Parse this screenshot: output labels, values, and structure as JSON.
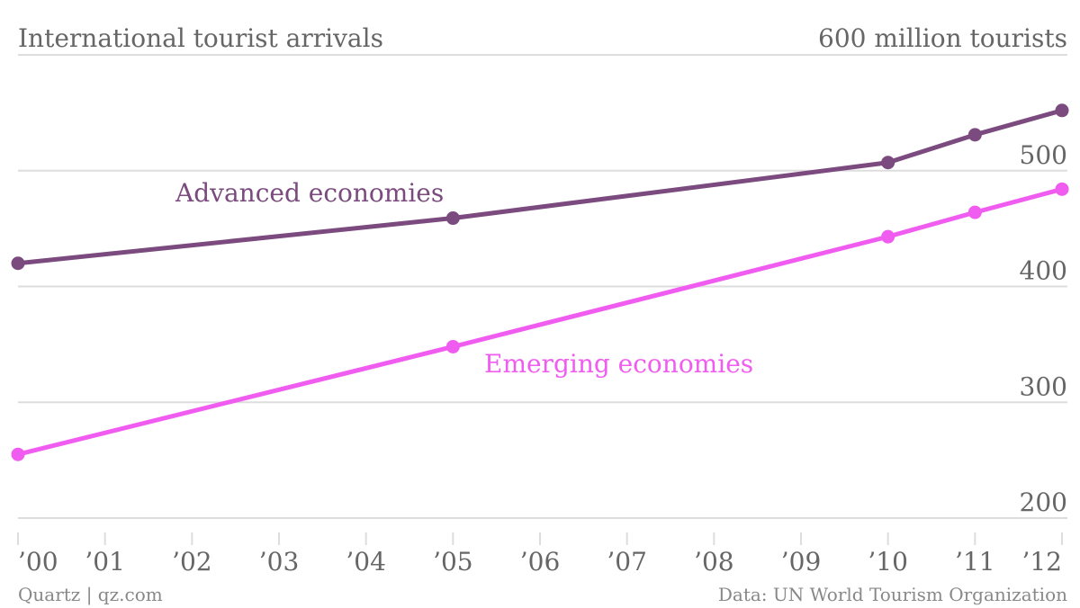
{
  "chart_data": {
    "type": "line",
    "title": "International tourist arrivals",
    "ylabel_top": "600 million tourists",
    "source": "Data: UN World Tourism Organization",
    "credit": "Quartz | qz.com",
    "x_ticks": [
      "’00",
      "’01",
      "’02",
      "’03",
      "’04",
      "’05",
      "’06",
      "’07",
      "’08",
      "’09",
      "’10",
      "’11",
      "’12"
    ],
    "y_ticks": [
      200,
      300,
      400,
      500
    ],
    "ylim": [
      200,
      600
    ],
    "xlim": [
      2000,
      2012
    ],
    "grid": true,
    "series": [
      {
        "name": "Advanced economies",
        "color": "#7b4a7e",
        "x": [
          2000,
          2005,
          2010,
          2011,
          2012
        ],
        "values": [
          420,
          459,
          507,
          531,
          552
        ]
      },
      {
        "name": "Emerging economies",
        "color": "#f15cf0",
        "x": [
          2000,
          2005,
          2010,
          2011,
          2012
        ],
        "values": [
          255,
          348,
          443,
          464,
          484
        ]
      }
    ]
  }
}
